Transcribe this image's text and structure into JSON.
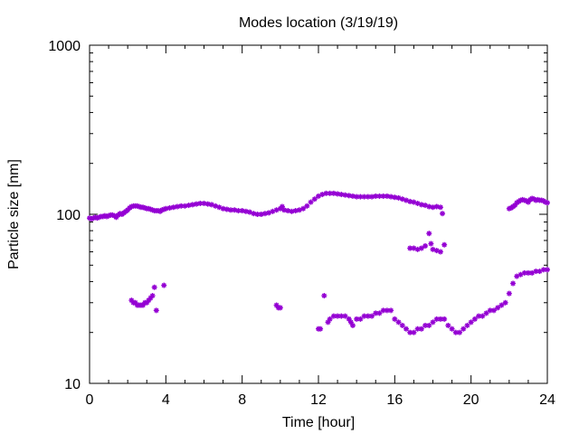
{
  "chart_data": {
    "type": "scatter",
    "title": "Modes location (3/19/19)",
    "xlabel": "Time [hour]",
    "ylabel": "Particle size [nm]",
    "xlim": [
      0,
      24
    ],
    "ylim": [
      10,
      1000
    ],
    "y_scale": "log",
    "x_ticks": [
      "0",
      "4",
      "8",
      "12",
      "16",
      "20",
      "24"
    ],
    "y_ticks": [
      "10",
      "100",
      "1000"
    ],
    "grid": false,
    "marker_color": "#9400d3",
    "series": [
      {
        "values": [
          [
            0.0,
            95
          ],
          [
            0.1,
            94
          ],
          [
            0.2,
            95
          ],
          [
            0.3,
            96
          ],
          [
            0.4,
            95
          ],
          [
            0.5,
            96
          ],
          [
            0.6,
            97
          ],
          [
            0.7,
            97
          ],
          [
            0.8,
            98
          ],
          [
            0.9,
            97
          ],
          [
            1.0,
            98
          ],
          [
            1.1,
            99
          ],
          [
            1.2,
            99
          ],
          [
            1.3,
            98
          ],
          [
            1.4,
            96
          ],
          [
            1.5,
            99
          ],
          [
            1.6,
            101
          ],
          [
            1.7,
            100
          ],
          [
            1.8,
            102
          ],
          [
            1.9,
            104
          ],
          [
            2.0,
            106
          ],
          [
            2.1,
            109
          ],
          [
            2.2,
            111
          ],
          [
            2.3,
            112
          ],
          [
            2.4,
            112
          ],
          [
            2.5,
            112
          ],
          [
            2.6,
            111
          ],
          [
            2.7,
            110
          ],
          [
            2.8,
            110
          ],
          [
            2.9,
            109
          ],
          [
            3.0,
            108
          ],
          [
            3.1,
            108
          ],
          [
            3.2,
            107
          ],
          [
            3.3,
            106
          ],
          [
            3.4,
            105
          ],
          [
            3.5,
            105
          ],
          [
            3.6,
            105
          ],
          [
            3.7,
            104
          ],
          [
            3.8,
            106
          ],
          [
            3.9,
            107
          ],
          [
            4.0,
            108
          ],
          [
            4.2,
            109
          ],
          [
            4.4,
            110
          ],
          [
            4.6,
            111
          ],
          [
            4.8,
            112
          ],
          [
            5.0,
            112
          ],
          [
            5.2,
            113
          ],
          [
            5.4,
            114
          ],
          [
            5.6,
            115
          ],
          [
            5.8,
            116
          ],
          [
            6.0,
            116
          ],
          [
            6.2,
            115
          ],
          [
            6.4,
            114
          ],
          [
            6.6,
            112
          ],
          [
            6.8,
            110
          ],
          [
            7.0,
            108
          ],
          [
            7.2,
            107
          ],
          [
            7.4,
            106
          ],
          [
            7.6,
            106
          ],
          [
            7.8,
            105
          ],
          [
            8.0,
            105
          ],
          [
            8.2,
            104
          ],
          [
            8.4,
            103
          ],
          [
            8.6,
            101
          ],
          [
            8.8,
            100
          ],
          [
            9.0,
            100
          ],
          [
            9.2,
            101
          ],
          [
            9.4,
            102
          ],
          [
            9.6,
            104
          ],
          [
            9.8,
            106
          ],
          [
            10.0,
            108
          ],
          [
            10.1,
            111
          ],
          [
            10.2,
            106
          ],
          [
            10.4,
            105
          ],
          [
            10.6,
            104
          ],
          [
            10.8,
            105
          ],
          [
            11.0,
            106
          ],
          [
            11.2,
            108
          ],
          [
            11.4,
            112
          ],
          [
            11.6,
            118
          ],
          [
            11.8,
            123
          ],
          [
            12.0,
            128
          ],
          [
            12.2,
            131
          ],
          [
            12.4,
            133
          ],
          [
            12.6,
            133
          ],
          [
            12.8,
            133
          ],
          [
            13.0,
            132
          ],
          [
            13.2,
            131
          ],
          [
            13.4,
            130
          ],
          [
            13.6,
            129
          ],
          [
            13.8,
            128
          ],
          [
            14.0,
            127
          ],
          [
            14.2,
            127
          ],
          [
            14.4,
            127
          ],
          [
            14.6,
            127
          ],
          [
            14.8,
            127
          ],
          [
            15.0,
            128
          ],
          [
            15.2,
            128
          ],
          [
            15.4,
            128
          ],
          [
            15.6,
            128
          ],
          [
            15.8,
            127
          ],
          [
            16.0,
            126
          ],
          [
            16.2,
            125
          ],
          [
            16.4,
            123
          ],
          [
            16.6,
            121
          ],
          [
            16.8,
            119
          ],
          [
            17.0,
            118
          ],
          [
            17.2,
            116
          ],
          [
            17.4,
            114
          ],
          [
            17.6,
            113
          ],
          [
            17.8,
            111
          ],
          [
            18.0,
            110
          ],
          [
            18.2,
            111
          ],
          [
            18.4,
            110
          ],
          [
            18.5,
            101
          ],
          [
            22.0,
            108
          ],
          [
            22.1,
            109
          ],
          [
            22.2,
            111
          ],
          [
            22.3,
            113
          ],
          [
            22.4,
            117
          ],
          [
            22.5,
            119
          ],
          [
            22.6,
            121
          ],
          [
            22.7,
            122
          ],
          [
            22.8,
            121
          ],
          [
            22.9,
            120
          ],
          [
            23.0,
            118
          ],
          [
            23.1,
            122
          ],
          [
            23.2,
            124
          ],
          [
            23.3,
            123
          ],
          [
            23.4,
            121
          ],
          [
            23.5,
            122
          ],
          [
            23.6,
            121
          ],
          [
            23.7,
            121
          ],
          [
            23.8,
            120
          ],
          [
            23.9,
            118
          ],
          [
            24.0,
            117
          ],
          [
            16.8,
            63
          ],
          [
            17.0,
            63
          ],
          [
            17.2,
            62
          ],
          [
            17.4,
            63
          ],
          [
            17.6,
            65
          ],
          [
            17.8,
            77
          ],
          [
            17.9,
            67
          ],
          [
            18.0,
            62
          ],
          [
            18.2,
            61
          ],
          [
            18.4,
            60
          ],
          [
            18.6,
            66
          ],
          [
            2.2,
            31
          ],
          [
            2.3,
            30
          ],
          [
            2.4,
            30
          ],
          [
            2.5,
            29
          ],
          [
            2.6,
            29
          ],
          [
            2.7,
            29
          ],
          [
            2.8,
            29
          ],
          [
            2.9,
            30
          ],
          [
            3.0,
            30
          ],
          [
            3.1,
            31
          ],
          [
            3.2,
            32
          ],
          [
            3.3,
            33
          ],
          [
            3.4,
            37
          ],
          [
            3.5,
            27
          ],
          [
            3.9,
            38
          ],
          [
            9.8,
            29
          ],
          [
            9.9,
            28
          ],
          [
            10.0,
            28
          ],
          [
            12.0,
            21
          ],
          [
            12.1,
            21
          ],
          [
            12.3,
            33
          ],
          [
            12.5,
            23
          ],
          [
            12.6,
            24
          ],
          [
            12.8,
            25
          ],
          [
            13.0,
            25
          ],
          [
            13.2,
            25
          ],
          [
            13.4,
            25
          ],
          [
            13.6,
            24
          ],
          [
            13.7,
            23
          ],
          [
            13.8,
            22
          ],
          [
            14.0,
            24
          ],
          [
            14.2,
            24
          ],
          [
            14.4,
            25
          ],
          [
            14.6,
            25
          ],
          [
            14.8,
            25
          ],
          [
            15.0,
            26
          ],
          [
            15.2,
            26
          ],
          [
            15.4,
            27
          ],
          [
            15.6,
            27
          ],
          [
            15.8,
            27
          ],
          [
            16.0,
            24
          ],
          [
            16.2,
            23
          ],
          [
            16.4,
            22
          ],
          [
            16.6,
            21
          ],
          [
            16.8,
            20
          ],
          [
            17.0,
            20
          ],
          [
            17.2,
            21
          ],
          [
            17.4,
            21
          ],
          [
            17.6,
            22
          ],
          [
            17.8,
            22
          ],
          [
            18.0,
            23
          ],
          [
            18.2,
            24
          ],
          [
            18.4,
            24
          ],
          [
            18.6,
            24
          ],
          [
            18.8,
            22
          ],
          [
            19.0,
            21
          ],
          [
            19.2,
            20
          ],
          [
            19.4,
            20
          ],
          [
            19.6,
            21
          ],
          [
            19.8,
            22
          ],
          [
            20.0,
            23
          ],
          [
            20.2,
            24
          ],
          [
            20.4,
            25
          ],
          [
            20.6,
            25
          ],
          [
            20.8,
            26
          ],
          [
            21.0,
            27
          ],
          [
            21.2,
            27
          ],
          [
            21.4,
            28
          ],
          [
            21.6,
            29
          ],
          [
            21.8,
            30
          ],
          [
            22.0,
            34
          ],
          [
            22.2,
            39
          ],
          [
            22.4,
            43
          ],
          [
            22.6,
            44
          ],
          [
            22.8,
            45
          ],
          [
            23.0,
            45
          ],
          [
            23.2,
            45
          ],
          [
            23.4,
            46
          ],
          [
            23.6,
            46
          ],
          [
            23.8,
            47
          ],
          [
            24.0,
            47
          ]
        ]
      }
    ]
  }
}
